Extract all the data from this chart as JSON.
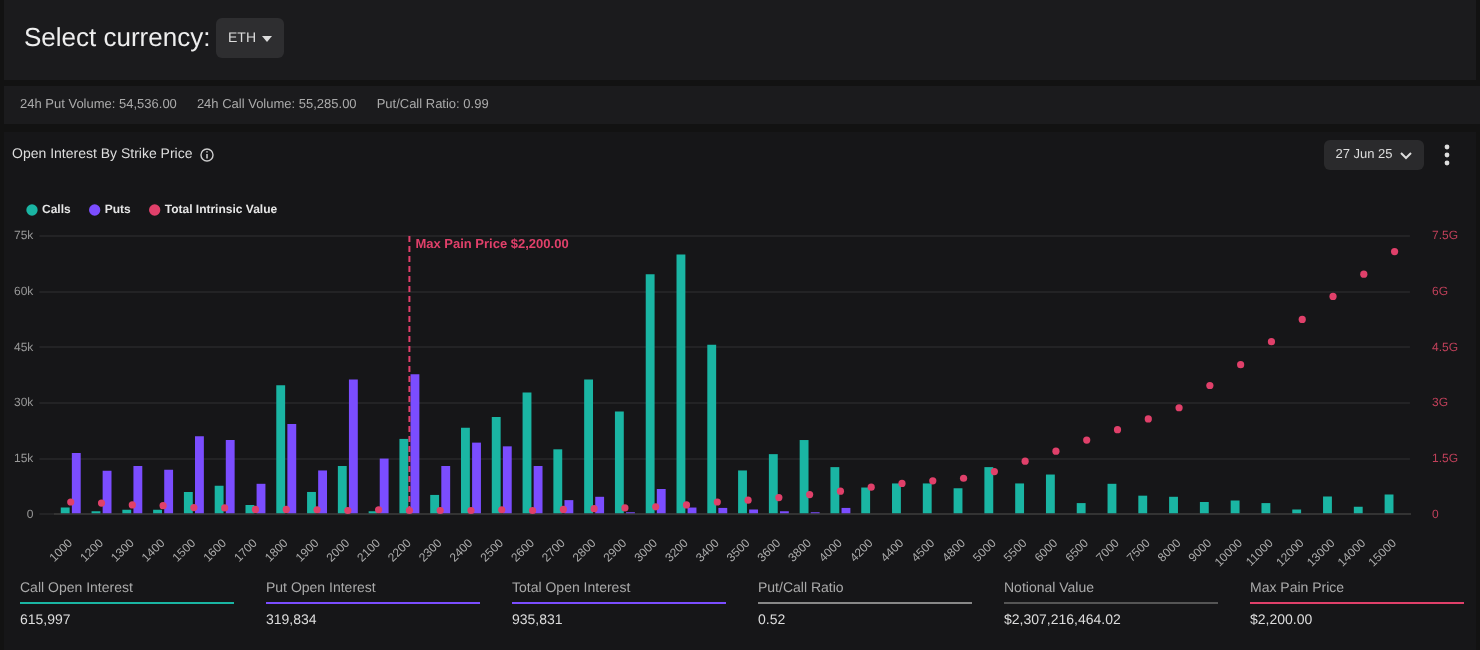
{
  "chart_data": {
    "type": "bar",
    "title": "Open Interest By Strike Price",
    "categories": [
      "1000",
      "1200",
      "1300",
      "1400",
      "1500",
      "1600",
      "1700",
      "1800",
      "1900",
      "2000",
      "2100",
      "2200",
      "2300",
      "2400",
      "2500",
      "2600",
      "2700",
      "2800",
      "2900",
      "3000",
      "3200",
      "3400",
      "3500",
      "3600",
      "3800",
      "4000",
      "4200",
      "4400",
      "4500",
      "4800",
      "5000",
      "5500",
      "6000",
      "6500",
      "7000",
      "7500",
      "8000",
      "9000",
      "10000",
      "11000",
      "12000",
      "13000",
      "14000",
      "15000"
    ],
    "series": [
      {
        "name": "Calls",
        "color": "#1ab5a3",
        "values": [
          1800,
          800,
          1200,
          1200,
          6000,
          7700,
          2500,
          34800,
          6000,
          13000,
          800,
          20300,
          5200,
          23300,
          26200,
          32800,
          17500,
          36300,
          27700,
          64700,
          70000,
          45700,
          11800,
          16200,
          20000,
          12700,
          7200,
          8300,
          8300,
          7000,
          12700,
          8300,
          10700,
          3000,
          8200,
          5000,
          4700,
          3300,
          3700,
          3000,
          1300,
          4800,
          2000,
          5300
        ]
      },
      {
        "name": "Puts",
        "color": "#7b4dff",
        "values": [
          16500,
          11700,
          13000,
          12000,
          21000,
          20000,
          8200,
          24300,
          11800,
          36300,
          15000,
          37700,
          13000,
          19300,
          18300,
          13000,
          3800,
          4700,
          500,
          6800,
          1800,
          1700,
          1300,
          800,
          500,
          1700,
          0,
          0,
          0,
          0,
          0,
          0,
          0,
          0,
          0,
          0,
          0,
          0,
          0,
          0,
          0,
          0,
          0,
          0
        ]
      },
      {
        "name": "Total Intrinsic Value",
        "type": "scatter",
        "axis": "y2",
        "color": "#e0406a",
        "marker": "circle",
        "values": [
          0.33,
          0.3,
          0.25,
          0.23,
          0.18,
          0.17,
          0.13,
          0.13,
          0.12,
          0.1,
          0.12,
          0.1,
          0.1,
          0.1,
          0.12,
          0.1,
          0.13,
          0.15,
          0.17,
          0.2,
          0.25,
          0.33,
          0.38,
          0.45,
          0.53,
          0.62,
          0.73,
          0.83,
          0.9,
          0.97,
          1.15,
          1.43,
          1.7,
          2.0,
          2.28,
          2.57,
          2.87,
          3.47,
          4.03,
          4.65,
          5.25,
          5.87,
          6.47,
          7.08
        ]
      }
    ],
    "ylim": [
      0,
      75000
    ],
    "yticks": [
      0,
      {
        "value": 15000,
        "label": "15k"
      },
      {
        "value": 30000,
        "label": "30k"
      },
      {
        "value": 45000,
        "label": "45k"
      },
      {
        "value": 60000,
        "label": "60k"
      },
      {
        "value": 75000,
        "label": "75k"
      }
    ],
    "y2lim": [
      0,
      7.5
    ],
    "y2ticks": [
      0,
      {
        "value": 1.5,
        "label": "1.5G"
      },
      {
        "value": 3,
        "label": "3G"
      },
      {
        "value": 4.5,
        "label": "4.5G"
      },
      {
        "value": 6,
        "label": "6G"
      },
      {
        "value": 7.5,
        "label": "7.5G"
      }
    ],
    "ref_lines": [
      {
        "axis": "x",
        "value": "2200",
        "label": "Max Pain Price $2,200.00",
        "color": "#e0406a",
        "line_style": "dashed"
      }
    ],
    "grid": "y",
    "legend": "top left",
    "annotations": [
      "Select currency:",
      "ETH",
      "24h Put Volume: 54,536.00",
      "24h Call Volume: 55,285.00",
      "Put/Call Ratio: 0.99",
      "27 Jun 25",
      "Call Open Interest",
      "615,997",
      "Put Open Interest",
      "319,834",
      "Total Open Interest",
      "935,831",
      "Put/Call Ratio",
      "0.52",
      "Notional Value",
      "$2,307,216,464.02",
      "Max Pain Price",
      "$2,200.00"
    ]
  }
}
